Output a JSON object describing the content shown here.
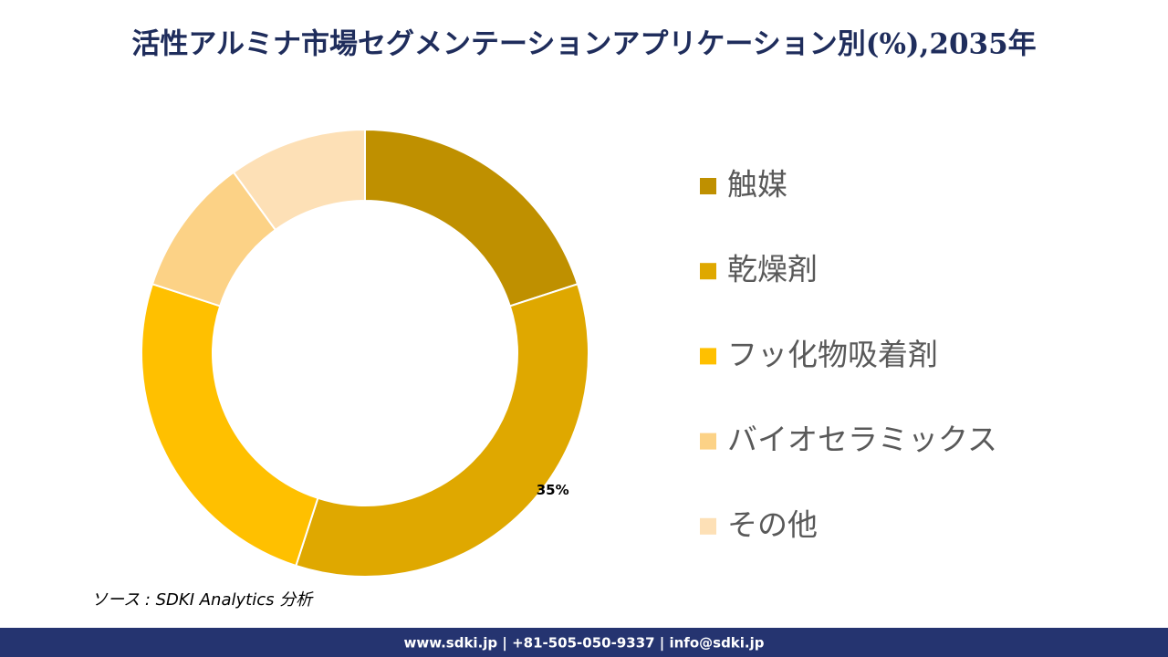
{
  "chart_data": {
    "type": "donut",
    "title": "活性アルミナ市場セグメンテーションアプリケーション別(%),2035年",
    "categories": [
      "触媒",
      "乾燥剤",
      "フッ化物吸着剤",
      "バイオセラミックス",
      "その他"
    ],
    "values": [
      20,
      35,
      25,
      10,
      10
    ],
    "value_labels": [
      null,
      "35%",
      null,
      null,
      null
    ],
    "colors": [
      "#bf9000",
      "#dfa800",
      "#ffc000",
      "#fcd286",
      "#fde0b6"
    ],
    "legend": "right"
  },
  "source": "ソース : SDKI Analytics 分析",
  "footer": "www.sdki.jp | +81-505-050-9337 | info@sdki.jp"
}
